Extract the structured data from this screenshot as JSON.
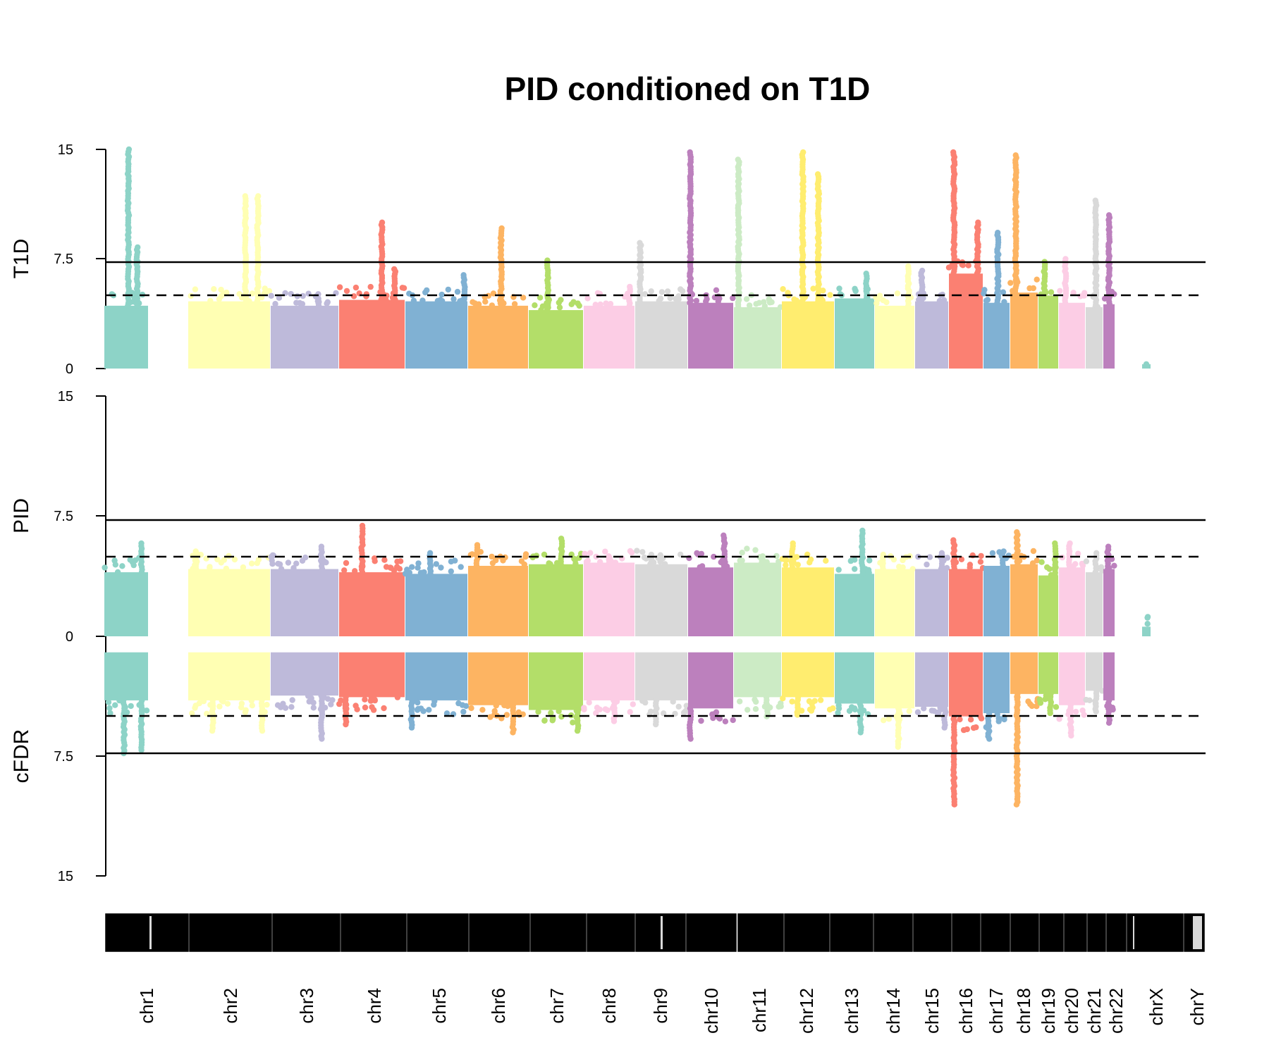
{
  "chart_data": {
    "type": "scatter",
    "title": "PID conditioned on T1D",
    "subtype": "miami plot (two-panel manhattan)",
    "panels": [
      {
        "name": "T1D",
        "ylabel": "T1D",
        "ylim": [
          0,
          15
        ],
        "ticks": [
          "0",
          "7.5",
          "15"
        ],
        "threshold_solid": 7.3,
        "threshold_dashed": 5
      },
      {
        "name": "PID",
        "ylabel": "PID",
        "ylim": [
          0,
          15
        ],
        "ticks": [
          "0",
          "7.5",
          "15"
        ],
        "threshold_solid": 7.3,
        "threshold_dashed": 5
      },
      {
        "name": "cFDR",
        "ylabel": "cFDR",
        "ylim": [
          0,
          15
        ],
        "ticks": [
          "7.5",
          "15"
        ],
        "direction": "inverted",
        "threshold_solid": 7.3,
        "threshold_dashed": 5
      }
    ],
    "chromosomes": [
      {
        "label": "chr1",
        "color": "#8DD3C7",
        "base_t1d": 4.3,
        "base_pid": 4.0,
        "base_cfdr": 4.0,
        "peaks_t1d": [
          [
            0.55,
            15.0
          ],
          [
            0.75,
            8.3
          ]
        ],
        "peaks_pid": [
          [
            0.85,
            5.8
          ]
        ],
        "peaks_cfdr": [
          [
            0.45,
            7.3
          ],
          [
            0.85,
            7.1
          ]
        ]
      },
      {
        "label": "chr2",
        "color": "#FFFFB3",
        "base_t1d": 4.6,
        "base_pid": 4.2,
        "base_cfdr": 4.0,
        "peaks_t1d": [
          [
            0.7,
            11.8
          ],
          [
            0.85,
            11.8
          ]
        ],
        "peaks_pid": [
          [
            0.1,
            5.3
          ]
        ],
        "peaks_cfdr": [
          [
            0.3,
            5.9
          ],
          [
            0.9,
            5.9
          ]
        ]
      },
      {
        "label": "chr3",
        "color": "#BEBADA",
        "base_t1d": 4.3,
        "base_pid": 4.2,
        "base_cfdr": 3.7,
        "peaks_t1d": [
          [
            0.7,
            5.1
          ]
        ],
        "peaks_pid": [
          [
            0.75,
            5.6
          ]
        ],
        "peaks_cfdr": [
          [
            0.75,
            6.4
          ]
        ]
      },
      {
        "label": "chr4",
        "color": "#FB8072",
        "base_t1d": 4.7,
        "base_pid": 4.0,
        "base_cfdr": 3.8,
        "peaks_t1d": [
          [
            0.65,
            10.0
          ],
          [
            0.85,
            6.8
          ]
        ],
        "peaks_pid": [
          [
            0.35,
            6.9
          ]
        ],
        "peaks_cfdr": [
          [
            0.1,
            5.5
          ]
        ]
      },
      {
        "label": "chr5",
        "color": "#80B1D3",
        "base_t1d": 4.6,
        "base_pid": 3.9,
        "base_cfdr": 4.0,
        "peaks_t1d": [
          [
            0.95,
            6.4
          ]
        ],
        "peaks_pid": [
          [
            0.4,
            5.2
          ]
        ],
        "peaks_cfdr": [
          [
            0.1,
            5.7
          ]
        ]
      },
      {
        "label": "chr6",
        "color": "#FDB462",
        "base_t1d": 4.3,
        "base_pid": 4.4,
        "base_cfdr": 4.3,
        "peaks_t1d": [
          [
            0.55,
            9.6
          ]
        ],
        "peaks_pid": [
          [
            0.15,
            5.7
          ]
        ],
        "peaks_cfdr": [
          [
            0.75,
            6.0
          ]
        ]
      },
      {
        "label": "chr7",
        "color": "#B3DE69",
        "base_t1d": 4.0,
        "base_pid": 4.5,
        "base_cfdr": 4.6,
        "peaks_t1d": [
          [
            0.35,
            7.4
          ]
        ],
        "peaks_pid": [
          [
            0.6,
            6.1
          ]
        ],
        "peaks_cfdr": [
          [
            0.9,
            5.9
          ]
        ]
      },
      {
        "label": "chr8",
        "color": "#FCCDE5",
        "base_t1d": 4.3,
        "base_pid": 4.6,
        "base_cfdr": 4.0,
        "peaks_t1d": [
          [
            0.9,
            5.6
          ]
        ],
        "peaks_pid": [
          [
            0.5,
            5.0
          ]
        ],
        "peaks_cfdr": [
          [
            0.6,
            5.3
          ]
        ]
      },
      {
        "label": "chr9",
        "color": "#D9D9D9",
        "base_t1d": 4.6,
        "base_pid": 4.5,
        "base_cfdr": 4.0,
        "peaks_t1d": [
          [
            0.1,
            8.6
          ]
        ],
        "peaks_pid": [
          [
            0.3,
            5.1
          ]
        ],
        "peaks_cfdr": [
          [
            0.4,
            5.5
          ]
        ]
      },
      {
        "label": "chr10",
        "color": "#BC80BD",
        "base_t1d": 4.5,
        "base_pid": 4.3,
        "base_cfdr": 4.5,
        "peaks_t1d": [
          [
            0.05,
            14.8
          ]
        ],
        "peaks_pid": [
          [
            0.8,
            6.3
          ]
        ],
        "peaks_cfdr": [
          [
            0.05,
            6.4
          ]
        ]
      },
      {
        "label": "chr11",
        "color": "#CCEBC5",
        "base_t1d": 4.2,
        "base_pid": 4.6,
        "base_cfdr": 3.8,
        "peaks_t1d": [
          [
            0.1,
            14.3
          ]
        ],
        "peaks_pid": [
          [
            0.6,
            5.0
          ]
        ],
        "peaks_cfdr": [
          [
            0.7,
            5.0
          ]
        ]
      },
      {
        "label": "chr12",
        "color": "#FFED6F",
        "base_t1d": 4.6,
        "base_pid": 4.3,
        "base_cfdr": 3.8,
        "peaks_t1d": [
          [
            0.4,
            14.8
          ],
          [
            0.7,
            13.3
          ]
        ],
        "peaks_pid": [
          [
            0.2,
            5.8
          ]
        ],
        "peaks_cfdr": [
          [
            0.3,
            4.9
          ]
        ]
      },
      {
        "label": "chr13",
        "color": "#8DD3C7",
        "base_t1d": 4.8,
        "base_pid": 3.9,
        "base_cfdr": 4.2,
        "peaks_t1d": [
          [
            0.8,
            6.5
          ]
        ],
        "peaks_pid": [
          [
            0.7,
            6.6
          ]
        ],
        "peaks_cfdr": [
          [
            0.65,
            6.0
          ]
        ]
      },
      {
        "label": "chr14",
        "color": "#FFFFB3",
        "base_t1d": 4.3,
        "base_pid": 4.2,
        "base_cfdr": 4.5,
        "peaks_t1d": [
          [
            0.85,
            7.0
          ]
        ],
        "peaks_pid": [
          [
            0.2,
            5.1
          ]
        ],
        "peaks_cfdr": [
          [
            0.6,
            6.9
          ]
        ]
      },
      {
        "label": "chr15",
        "color": "#BEBADA",
        "base_t1d": 4.6,
        "base_pid": 4.2,
        "base_cfdr": 4.4,
        "peaks_t1d": [
          [
            0.2,
            6.7
          ]
        ],
        "peaks_pid": [
          [
            0.8,
            5.2
          ]
        ],
        "peaks_cfdr": [
          [
            0.9,
            5.7
          ]
        ]
      },
      {
        "label": "chr16",
        "color": "#FB8072",
        "base_t1d": 6.5,
        "base_pid": 4.2,
        "base_cfdr": 5.0,
        "peaks_t1d": [
          [
            0.15,
            14.8
          ],
          [
            0.85,
            10.0
          ]
        ],
        "peaks_pid": [
          [
            0.15,
            6.0
          ]
        ],
        "peaks_cfdr": [
          [
            0.15,
            10.5
          ]
        ]
      },
      {
        "label": "chr17",
        "color": "#80B1D3",
        "base_t1d": 4.5,
        "base_pid": 4.4,
        "base_cfdr": 4.8,
        "peaks_t1d": [
          [
            0.55,
            9.3
          ]
        ],
        "peaks_pid": [
          [
            0.75,
            5.3
          ]
        ],
        "peaks_cfdr": [
          [
            0.2,
            6.4
          ]
        ]
      },
      {
        "label": "chr18",
        "color": "#FDB462",
        "base_t1d": 5.2,
        "base_pid": 4.5,
        "base_cfdr": 3.6,
        "peaks_t1d": [
          [
            0.2,
            14.6
          ]
        ],
        "peaks_pid": [
          [
            0.25,
            6.5
          ]
        ],
        "peaks_cfdr": [
          [
            0.25,
            10.5
          ]
        ]
      },
      {
        "label": "chr19",
        "color": "#B3DE69",
        "base_t1d": 5.0,
        "base_pid": 3.8,
        "base_cfdr": 3.6,
        "peaks_t1d": [
          [
            0.3,
            7.3
          ]
        ],
        "peaks_pid": [
          [
            0.85,
            5.8
          ]
        ],
        "peaks_cfdr": [
          [
            0.6,
            4.8
          ]
        ]
      },
      {
        "label": "chr20",
        "color": "#FCCDE5",
        "base_t1d": 4.5,
        "base_pid": 4.3,
        "base_cfdr": 4.3,
        "peaks_t1d": [
          [
            0.25,
            7.5
          ]
        ],
        "peaks_pid": [
          [
            0.4,
            5.8
          ]
        ],
        "peaks_cfdr": [
          [
            0.45,
            6.2
          ]
        ]
      },
      {
        "label": "chr21",
        "color": "#D9D9D9",
        "base_t1d": 4.2,
        "base_pid": 4.0,
        "base_cfdr": 3.4,
        "peaks_t1d": [
          [
            0.6,
            11.5
          ]
        ],
        "peaks_pid": [
          [
            0.6,
            5.2
          ]
        ],
        "peaks_cfdr": [
          [
            0.6,
            4.7
          ]
        ]
      },
      {
        "label": "chr22",
        "color": "#BC80BD",
        "base_t1d": 4.4,
        "base_pid": 4.2,
        "base_cfdr": 4.0,
        "peaks_t1d": [
          [
            0.5,
            10.5
          ]
        ],
        "peaks_pid": [
          [
            0.4,
            5.6
          ]
        ],
        "peaks_cfdr": [
          [
            0.5,
            5.4
          ]
        ]
      },
      {
        "label": "chrX",
        "color": "#8DD3C7",
        "base_t1d": 0.3,
        "base_pid": 0.6,
        "base_cfdr": 0,
        "peaks_t1d": [],
        "peaks_pid": [],
        "peaks_cfdr": []
      },
      {
        "label": "chrY",
        "color": "#D9D9D9",
        "base_t1d": 0,
        "base_pid": 0,
        "base_cfdr": 0,
        "peaks_t1d": [],
        "peaks_pid": [],
        "peaks_cfdr": []
      }
    ]
  }
}
